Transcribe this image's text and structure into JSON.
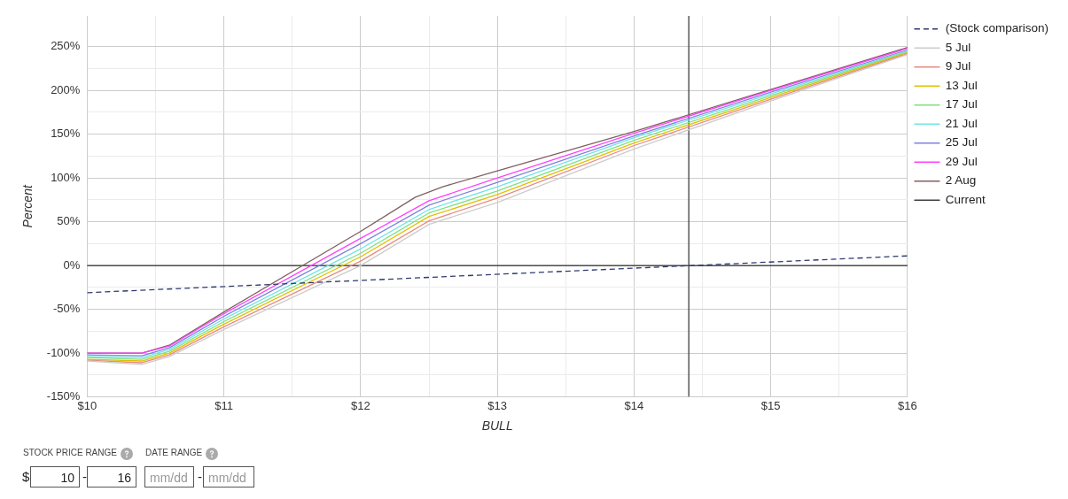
{
  "chart_data": {
    "type": "line",
    "xlabel": "BULL",
    "ylabel": "Percent",
    "xlim": [
      10,
      16
    ],
    "ylim": [
      -150,
      285
    ],
    "xticks": [
      {
        "value": 10,
        "label": "$10"
      },
      {
        "value": 10.5,
        "label": null
      },
      {
        "value": 11,
        "label": "$11"
      },
      {
        "value": 11.5,
        "label": null
      },
      {
        "value": 12,
        "label": "$12"
      },
      {
        "value": 12.5,
        "label": null
      },
      {
        "value": 13,
        "label": "$13"
      },
      {
        "value": 13.5,
        "label": null
      },
      {
        "value": 14,
        "label": "$14"
      },
      {
        "value": 14.5,
        "label": null
      },
      {
        "value": 15,
        "label": "$15"
      },
      {
        "value": 15.5,
        "label": null
      },
      {
        "value": 16,
        "label": "$16"
      }
    ],
    "yticks": [
      {
        "value": -150,
        "label": "-150%"
      },
      {
        "value": -125,
        "label": null
      },
      {
        "value": -100,
        "label": "-100%"
      },
      {
        "value": -75,
        "label": null
      },
      {
        "value": -50,
        "label": "-50%"
      },
      {
        "value": -25,
        "label": null
      },
      {
        "value": 0,
        "label": "0%"
      },
      {
        "value": 25,
        "label": null
      },
      {
        "value": 50,
        "label": "50%"
      },
      {
        "value": 75,
        "label": null
      },
      {
        "value": 100,
        "label": "100%"
      },
      {
        "value": 125,
        "label": null
      },
      {
        "value": 150,
        "label": "150%"
      },
      {
        "value": 175,
        "label": null
      },
      {
        "value": 200,
        "label": "200%"
      },
      {
        "value": 225,
        "label": null
      },
      {
        "value": 250,
        "label": "250%"
      }
    ],
    "grid": true,
    "legend": "top right",
    "marker": "none",
    "ref_lines": [
      {
        "axis": "y",
        "value": 0,
        "color": "#000000"
      }
    ],
    "series": [
      {
        "name": "(Stock comparison)",
        "color": "#2e3a6e",
        "line_style": "dashed",
        "x": [
          10,
          16
        ],
        "values": [
          -31,
          11
        ]
      },
      {
        "name": "5 Jul",
        "color": "#cccccc",
        "x": [
          10,
          10.4,
          10.6,
          11,
          12,
          12.5,
          13,
          14,
          15,
          16
        ],
        "values": [
          -109,
          -113,
          -104,
          -73,
          0,
          47,
          72,
          133,
          188,
          241
        ]
      },
      {
        "name": "9 Jul",
        "color": "#e88a80",
        "x": [
          10,
          10.4,
          10.6,
          11,
          12,
          12.5,
          13,
          14,
          15,
          16
        ],
        "values": [
          -108,
          -111,
          -102,
          -70,
          5,
          51,
          77,
          137,
          190,
          242
        ]
      },
      {
        "name": "13 Jul",
        "color": "#e0c000",
        "x": [
          10,
          10.4,
          10.6,
          11,
          12,
          12.5,
          13,
          14,
          15,
          16
        ],
        "values": [
          -107,
          -109,
          -100,
          -67,
          10,
          56,
          81,
          140,
          192,
          243
        ]
      },
      {
        "name": "17 Jul",
        "color": "#80e080",
        "x": [
          10,
          10.4,
          10.6,
          11,
          12,
          12.5,
          13,
          14,
          15,
          16
        ],
        "values": [
          -105,
          -107,
          -98,
          -64,
          14,
          60,
          85,
          143,
          194,
          244
        ]
      },
      {
        "name": "21 Jul",
        "color": "#70e4e4",
        "x": [
          10,
          10.4,
          10.6,
          11,
          12,
          12.5,
          13,
          14,
          15,
          16
        ],
        "values": [
          -104,
          -105,
          -96,
          -61,
          19,
          64,
          90,
          146,
          196,
          245
        ]
      },
      {
        "name": "25 Jul",
        "color": "#8080e0",
        "x": [
          10,
          10.4,
          10.6,
          11,
          12,
          12.5,
          13,
          14,
          15,
          16
        ],
        "values": [
          -102,
          -103,
          -94,
          -58,
          25,
          69,
          95,
          148,
          198,
          246
        ]
      },
      {
        "name": "29 Jul",
        "color": "#ff40ff",
        "x": [
          10,
          10.4,
          10.6,
          11,
          12,
          12.5,
          13,
          14,
          15,
          16
        ],
        "values": [
          -100,
          -100,
          -92,
          -55,
          31,
          74,
          100,
          151,
          200,
          248
        ]
      },
      {
        "name": "2 Aug",
        "color": "#806060",
        "x": [
          10,
          10.4,
          10.6,
          11,
          12,
          12.4,
          12.6,
          13,
          14,
          15,
          16
        ],
        "values": [
          -100,
          -100,
          -91,
          -53,
          39,
          78,
          90,
          108,
          153,
          201,
          249
        ]
      },
      {
        "name": "Current",
        "color": "#404040",
        "x": [
          14.4,
          14.4
        ],
        "values": [
          -150,
          285
        ]
      }
    ],
    "annotations": [
      "STOCK PRICE RANGE",
      "DATE RANGE",
      "$",
      "10",
      "-",
      "16",
      "mm/dd",
      "-",
      "mm/dd"
    ]
  }
}
